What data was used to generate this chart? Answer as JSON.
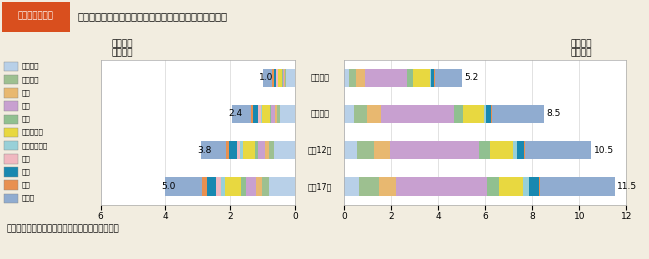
{
  "title_box": "第１－８－３図",
  "title_text": "専攻分野別にみた学生数（大学院（修士課程））の推移",
  "footnote": "（備考）文部科学者「学校基本調査」より作成。",
  "year_labels": [
    "平成２年",
    "平成７年",
    "平成12年",
    "平成17年"
  ],
  "totals_female": [
    1.0,
    2.4,
    3.8,
    5.0
  ],
  "totals_male": [
    5.2,
    8.5,
    10.5,
    11.5
  ],
  "categories": [
    "人文科学",
    "社会科学",
    "理学",
    "工学",
    "農学",
    "医学・歯学",
    "その他の保健",
    "家政",
    "教育",
    "芸術",
    "その他"
  ],
  "colors": [
    "#b8d0e8",
    "#9dc090",
    "#e8b870",
    "#c8a0d0",
    "#90c090",
    "#e8d840",
    "#98d0d8",
    "#f0b8c0",
    "#1888b0",
    "#e89050",
    "#90acd0"
  ],
  "female_data": [
    [
      0.28,
      0.04,
      0.02,
      0.04,
      0.02,
      0.13,
      0.01,
      0.06,
      0.06,
      0.05,
      0.29
    ],
    [
      0.48,
      0.08,
      0.06,
      0.12,
      0.05,
      0.25,
      0.03,
      0.09,
      0.13,
      0.07,
      0.58
    ],
    [
      0.65,
      0.15,
      0.12,
      0.22,
      0.1,
      0.38,
      0.07,
      0.12,
      0.22,
      0.1,
      0.77
    ],
    [
      0.8,
      0.22,
      0.18,
      0.32,
      0.16,
      0.48,
      0.13,
      0.14,
      0.3,
      0.14,
      1.13
    ]
  ],
  "male_data": [
    [
      0.22,
      0.3,
      0.38,
      1.8,
      0.22,
      0.75,
      0.04,
      0.01,
      0.12,
      0.03,
      1.13
    ],
    [
      0.42,
      0.55,
      0.62,
      3.1,
      0.38,
      0.88,
      0.09,
      0.01,
      0.22,
      0.04,
      2.19
    ],
    [
      0.55,
      0.72,
      0.7,
      3.75,
      0.48,
      0.98,
      0.16,
      0.02,
      0.3,
      0.05,
      2.79
    ],
    [
      0.62,
      0.85,
      0.74,
      3.85,
      0.52,
      1.05,
      0.23,
      0.02,
      0.4,
      0.06,
      3.16
    ]
  ],
  "bg_color": "#f2ede0",
  "header_color": "#d94f1e",
  "header_text_color": "#ffffff",
  "plot_bg": "#ffffff",
  "female_josei": "（女性）",
  "female_manen": "（万人）",
  "male_josei": "（男性）",
  "male_manen": "（万人）"
}
